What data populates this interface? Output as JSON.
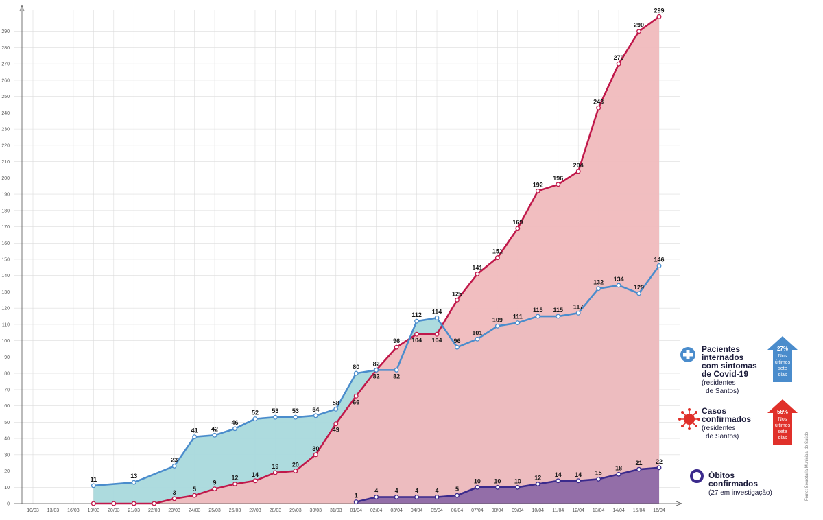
{
  "chart_data": {
    "type": "area",
    "ylim": [
      0,
      300
    ],
    "yticks": [
      0,
      10,
      20,
      30,
      40,
      50,
      60,
      70,
      80,
      90,
      100,
      110,
      120,
      130,
      140,
      150,
      160,
      170,
      180,
      190,
      200,
      210,
      220,
      230,
      240,
      250,
      260,
      270,
      280,
      290
    ],
    "categories": [
      "10/03",
      "13/03",
      "16/03",
      "19/03",
      "20/03",
      "21/03",
      "22/03",
      "23/03",
      "24/03",
      "25/03",
      "26/03",
      "27/03",
      "28/03",
      "29/03",
      "30/03",
      "31/03",
      "01/04",
      "02/04",
      "03/04",
      "04/04",
      "05/04",
      "06/04",
      "07/04",
      "08/04",
      "09/04",
      "10/04",
      "11/04",
      "12/04",
      "13/04",
      "14/04",
      "15/04",
      "16/04"
    ],
    "grid": true,
    "series": [
      {
        "name": "Casos confirmados",
        "color": "#c0184a",
        "fill": "#f0babd",
        "values": [
          null,
          null,
          null,
          0,
          0,
          0,
          0,
          3,
          5,
          9,
          12,
          14,
          19,
          20,
          30,
          49,
          66,
          82,
          96,
          104,
          104,
          125,
          141,
          151,
          169,
          192,
          196,
          204,
          243,
          270,
          290,
          299
        ],
        "labels": [
          null,
          null,
          null,
          null,
          null,
          null,
          null,
          "3",
          "5",
          "9",
          "12",
          "14",
          "19",
          "20",
          "30",
          "49",
          "66",
          "82",
          "96",
          "104",
          "104",
          "125",
          "141",
          "151",
          "169",
          "192",
          "196",
          "204",
          "243",
          "270",
          "290",
          "299"
        ]
      },
      {
        "name": "Pacientes internados",
        "color": "#4a8ccc",
        "fill": "#a9d9dc",
        "values": [
          null,
          null,
          null,
          11,
          null,
          13,
          null,
          23,
          41,
          42,
          46,
          52,
          53,
          53,
          54,
          58,
          80,
          82,
          82,
          112,
          114,
          96,
          101,
          109,
          111,
          115,
          115,
          117,
          132,
          134,
          129,
          146
        ],
        "labels": [
          null,
          null,
          null,
          "11",
          null,
          "13",
          null,
          "23",
          "41",
          "42",
          "46",
          "52",
          "53",
          "53",
          "54",
          "58",
          "80",
          "82",
          "82",
          "112",
          "114",
          "96",
          "101",
          "109",
          "111",
          "115",
          "115",
          "117",
          "132",
          "134",
          "129",
          "146"
        ]
      },
      {
        "name": "Óbitos confirmados",
        "color": "#3b2a8c",
        "fill": "#8e69a6",
        "values": [
          null,
          null,
          null,
          null,
          null,
          null,
          null,
          null,
          null,
          null,
          null,
          null,
          null,
          null,
          null,
          null,
          1,
          4,
          4,
          4,
          4,
          5,
          10,
          10,
          10,
          12,
          14,
          14,
          15,
          18,
          21,
          22
        ],
        "labels": [
          null,
          null,
          null,
          null,
          null,
          null,
          null,
          null,
          null,
          null,
          null,
          null,
          null,
          null,
          null,
          null,
          "1",
          "4",
          "4",
          "4",
          "4",
          "5",
          "10",
          "10",
          "10",
          "12",
          "14",
          "14",
          "15",
          "18",
          "21",
          "22"
        ]
      }
    ]
  },
  "legend": {
    "internados": {
      "line1": "Pacientes",
      "line2": "internados",
      "line3": "com sintomas",
      "line4": "de Covid-19",
      "sub1": "(residentes",
      "sub2": "de Santos)",
      "badge_pct": "27%",
      "badge_l1": "Nos",
      "badge_l2": "últimos",
      "badge_l3": "sete",
      "badge_l4": "dias",
      "badge_color": "#4a8ccc"
    },
    "casos": {
      "line1": "Casos",
      "line2": "confirmados",
      "sub1": "(residentes",
      "sub2": "de Santos)",
      "badge_pct": "56%",
      "badge_l1": "Nos",
      "badge_l2": "últimos",
      "badge_l3": "sete",
      "badge_l4": "dias",
      "badge_color": "#e0302a"
    },
    "obitos": {
      "line1": "Óbitos",
      "line2": "confirmados",
      "sub1": "(27 em investigação)"
    }
  },
  "credit": "Fonte: Secretaria Municipal de Saúde"
}
